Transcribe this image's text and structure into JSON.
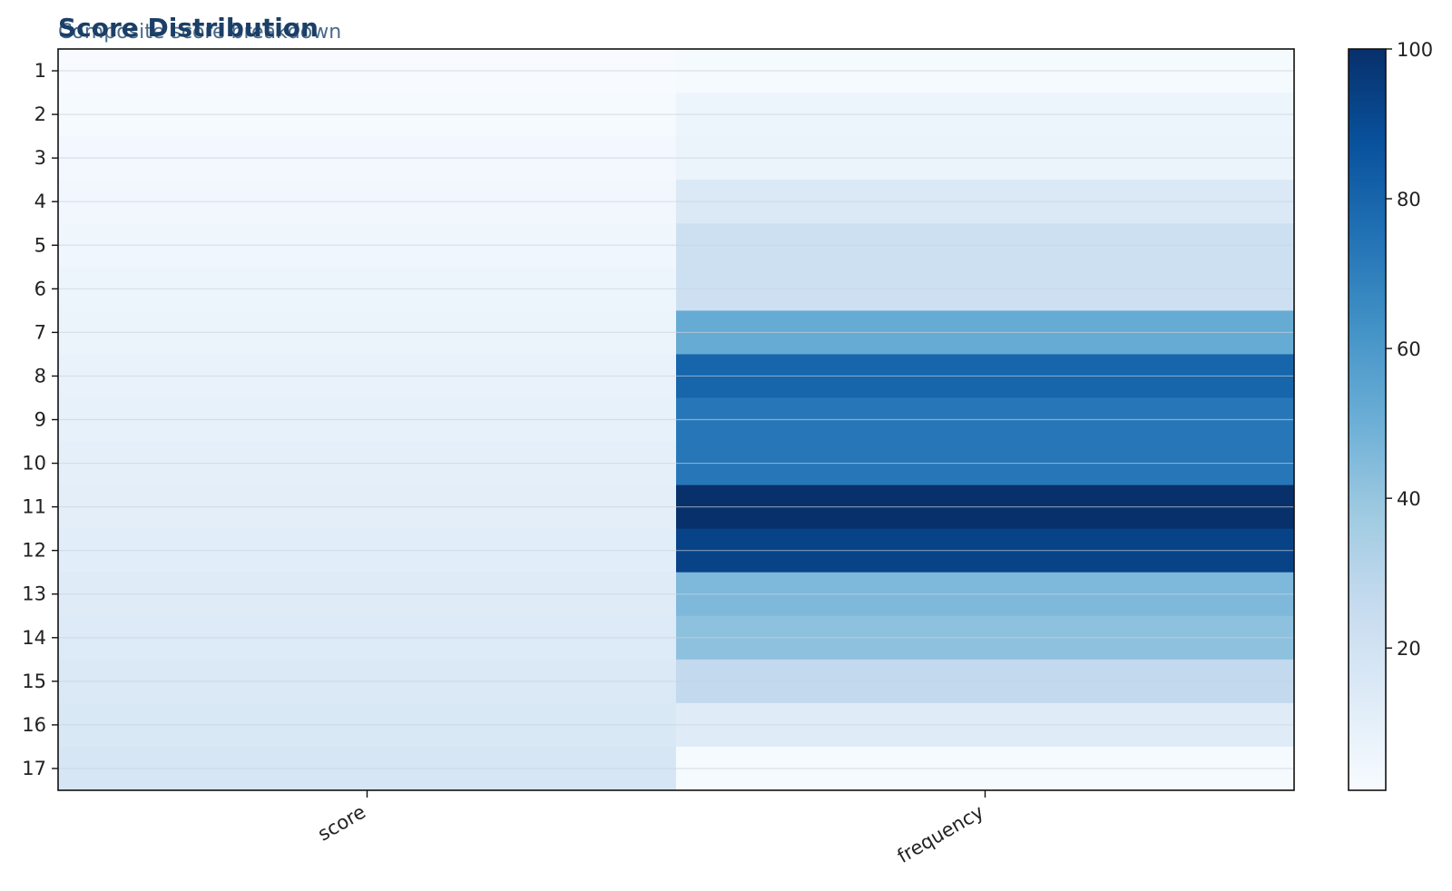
{
  "chart_data": {
    "type": "heatmap",
    "title": "Score Distribution",
    "subtitle": "Composite score breakdown",
    "columns": [
      "score",
      "frequency"
    ],
    "rows": [
      "1",
      "2",
      "3",
      "4",
      "5",
      "6",
      "7",
      "8",
      "9",
      "10",
      "11",
      "12",
      "13",
      "14",
      "15",
      "16",
      "17"
    ],
    "values": [
      [
        1,
        2
      ],
      [
        2,
        6
      ],
      [
        3,
        7
      ],
      [
        4,
        15
      ],
      [
        5,
        22
      ],
      [
        6,
        22
      ],
      [
        7,
        52
      ],
      [
        8,
        80
      ],
      [
        9,
        73
      ],
      [
        10,
        73
      ],
      [
        11,
        100
      ],
      [
        12,
        93
      ],
      [
        13,
        46
      ],
      [
        14,
        42
      ],
      [
        15,
        27
      ],
      [
        16,
        13
      ],
      [
        17,
        2
      ]
    ],
    "colorbar": {
      "min": 1,
      "max": 100,
      "ticks": [
        20,
        40,
        60,
        80,
        100
      ]
    },
    "colormap": "Blues",
    "grid": true
  }
}
